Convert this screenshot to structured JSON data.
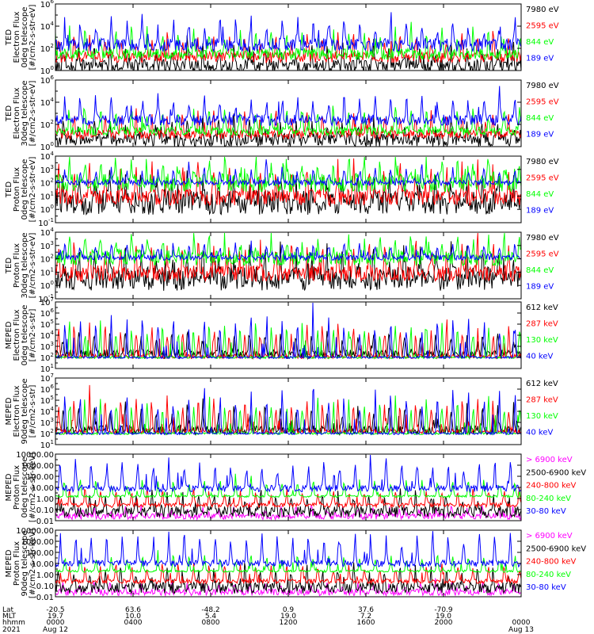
{
  "chart_data": [
    {
      "type": "line",
      "ylabel": [
        "TED",
        "Electron Flux",
        "0deg telescope",
        "[#/cm2-s-str-eV]"
      ],
      "yscale": "log",
      "ylim_exp": [
        0,
        6
      ],
      "tick_labels": [
        "10^0",
        "10^2",
        "10^4",
        "10^6"
      ],
      "series": [
        {
          "name": "7980 eV",
          "color": "#000000",
          "base_exp": 0.4,
          "noise": 0.6,
          "peak": 1.6,
          "seed": 11
        },
        {
          "name": "2595 eV",
          "color": "#ff0000",
          "base_exp": 1.2,
          "noise": 0.5,
          "peak": 1.8,
          "seed": 12
        },
        {
          "name": "844 eV",
          "color": "#00ff00",
          "base_exp": 1.5,
          "noise": 0.5,
          "peak": 2.0,
          "seed": 13
        },
        {
          "name": "189 eV",
          "color": "#0000ff",
          "base_exp": 2.3,
          "noise": 0.6,
          "peak": 2.2,
          "seed": 14
        }
      ]
    },
    {
      "type": "line",
      "ylabel": [
        "TED",
        "Electron Flux",
        "30deg telescope",
        "[#/cm2-s-str-eV]"
      ],
      "yscale": "log",
      "ylim_exp": [
        0,
        6
      ],
      "tick_labels": [
        "10^0",
        "10^2",
        "10^4",
        "10^6"
      ],
      "series": [
        {
          "name": "7980 eV",
          "color": "#000000",
          "base_exp": 0.6,
          "noise": 0.6,
          "peak": 1.5,
          "seed": 21
        },
        {
          "name": "2595 eV",
          "color": "#ff0000",
          "base_exp": 1.1,
          "noise": 0.4,
          "peak": 1.8,
          "seed": 22
        },
        {
          "name": "844 eV",
          "color": "#00ff00",
          "base_exp": 1.4,
          "noise": 0.4,
          "peak": 2.0,
          "seed": 23
        },
        {
          "name": "189 eV",
          "color": "#0000ff",
          "base_exp": 2.4,
          "noise": 0.5,
          "peak": 2.0,
          "seed": 24
        }
      ]
    },
    {
      "type": "line",
      "ylabel": [
        "TED",
        "Proton Flux",
        "0deg telescope",
        "[#/cm2-s-str-eV]"
      ],
      "yscale": "log",
      "ylim_exp": [
        -1,
        4
      ],
      "tick_labels": [
        "10^-1",
        "10^0",
        "10^1",
        "10^2",
        "10^3",
        "10^4"
      ],
      "series": [
        {
          "name": "7980 eV",
          "color": "#000000",
          "base_exp": 0.5,
          "noise": 0.9,
          "peak": 2.0,
          "seed": 31
        },
        {
          "name": "2595 eV",
          "color": "#ff0000",
          "base_exp": 0.9,
          "noise": 0.6,
          "peak": 2.2,
          "seed": 32
        },
        {
          "name": "844 eV",
          "color": "#00ff00",
          "base_exp": 2.0,
          "noise": 0.7,
          "peak": 1.6,
          "seed": 33
        },
        {
          "name": "189 eV",
          "color": "#0000ff",
          "base_exp": 2.0,
          "noise": 0.2,
          "peak": 1.0,
          "seed": 34
        }
      ]
    },
    {
      "type": "line",
      "ylabel": [
        "TED",
        "Proton Flux",
        "30deg telescope",
        "[#/cm2-s-str-eV]"
      ],
      "yscale": "log",
      "ylim_exp": [
        -1,
        4
      ],
      "tick_labels": [
        "10^-1",
        "10^0",
        "10^1",
        "10^2",
        "10^3",
        "10^4"
      ],
      "series": [
        {
          "name": "7980 eV",
          "color": "#000000",
          "base_exp": 0.5,
          "noise": 0.9,
          "peak": 2.0,
          "seed": 41
        },
        {
          "name": "2595 eV",
          "color": "#ff0000",
          "base_exp": 0.9,
          "noise": 0.6,
          "peak": 2.2,
          "seed": 42
        },
        {
          "name": "844 eV",
          "color": "#00ff00",
          "base_exp": 2.1,
          "noise": 0.6,
          "peak": 1.4,
          "seed": 43
        },
        {
          "name": "189 eV",
          "color": "#0000ff",
          "base_exp": 2.1,
          "noise": 0.2,
          "peak": 1.0,
          "seed": 44
        }
      ]
    },
    {
      "type": "line",
      "ylabel": [
        "MEPED",
        "Electron Flux",
        "0deg telescope",
        "[#/cm2-s-str]"
      ],
      "yscale": "log",
      "ylim_exp": [
        1,
        7
      ],
      "tick_labels": [
        "10^1",
        "10^2",
        "10^3",
        "10^4",
        "10^5",
        "10^6",
        "10^7"
      ],
      "series": [
        {
          "name": "612 keV",
          "color": "#000000",
          "base_exp": 2.3,
          "noise": 0.4,
          "peak": 1.8,
          "seed": 51
        },
        {
          "name": "287 keV",
          "color": "#ff0000",
          "base_exp": 2.1,
          "noise": 0.2,
          "peak": 2.5,
          "seed": 52
        },
        {
          "name": "130 keV",
          "color": "#00ff00",
          "base_exp": 2.0,
          "noise": 0.1,
          "peak": 2.8,
          "seed": 53
        },
        {
          "name": "40 keV",
          "color": "#0000ff",
          "base_exp": 2.0,
          "noise": 0.1,
          "peak": 3.2,
          "seed": 54
        }
      ]
    },
    {
      "type": "line",
      "ylabel": [
        "MEPED",
        "Electron Flux",
        "90deg telescope",
        "[#/cm2-s-str]"
      ],
      "yscale": "log",
      "ylim_exp": [
        1,
        7
      ],
      "tick_labels": [
        "10^1",
        "10^2",
        "10^3",
        "10^4",
        "10^5",
        "10^6",
        "10^7"
      ],
      "series": [
        {
          "name": "612 keV",
          "color": "#000000",
          "base_exp": 2.3,
          "noise": 0.4,
          "peak": 2.0,
          "seed": 61
        },
        {
          "name": "287 keV",
          "color": "#ff0000",
          "base_exp": 2.2,
          "noise": 0.2,
          "peak": 2.6,
          "seed": 62
        },
        {
          "name": "130 keV",
          "color": "#00ff00",
          "base_exp": 2.0,
          "noise": 0.1,
          "peak": 2.9,
          "seed": 63
        },
        {
          "name": "40 keV",
          "color": "#0000ff",
          "base_exp": 2.0,
          "noise": 0.1,
          "peak": 3.4,
          "seed": 64
        }
      ]
    },
    {
      "type": "line",
      "ylabel": [
        "MEPED",
        "Proton Flux",
        "0deg telescope",
        "[#/cm2-s-str-keV]"
      ],
      "yscale": "log",
      "ylim_exp": [
        -2,
        4
      ],
      "tick_labels": [
        "0.01",
        "0.10",
        "1.00",
        "10.00",
        "100.00",
        "1000.00",
        "10000.00"
      ],
      "series": [
        {
          "name": "> 6900 keV",
          "color": "#ff00ff",
          "base_exp": -1.6,
          "noise": 0.3,
          "peak": 0.8,
          "seed": 71
        },
        {
          "name": "2500-6900 keV",
          "color": "#000000",
          "base_exp": -1.2,
          "noise": 0.5,
          "peak": 1.5,
          "seed": 72
        },
        {
          "name": "240-800 keV",
          "color": "#ff0000",
          "base_exp": -0.6,
          "noise": 0.2,
          "peak": 1.3,
          "seed": 73
        },
        {
          "name": "80-240 keV",
          "color": "#00ff00",
          "base_exp": 0.2,
          "noise": 0.1,
          "peak": 1.4,
          "seed": 74
        },
        {
          "name": "30-80 keV",
          "color": "#0000ff",
          "base_exp": 0.9,
          "noise": 0.3,
          "peak": 2.4,
          "seed": 75
        }
      ]
    },
    {
      "type": "line",
      "ylabel": [
        "MEPED",
        "Proton Flux",
        "90deg telescope",
        "[#/cm2-s-str-keV]"
      ],
      "yscale": "log",
      "ylim_exp": [
        -2,
        4
      ],
      "tick_labels": [
        "0.01",
        "0.10",
        "1.00",
        "10.00",
        "100.00",
        "1000.00",
        "10000.00"
      ],
      "series": [
        {
          "name": "> 6900 keV",
          "color": "#ff00ff",
          "base_exp": -1.6,
          "noise": 0.3,
          "peak": 0.8,
          "seed": 81
        },
        {
          "name": "2500-6900 keV",
          "color": "#000000",
          "base_exp": -1.2,
          "noise": 0.5,
          "peak": 1.6,
          "seed": 82
        },
        {
          "name": "240-800 keV",
          "color": "#ff0000",
          "base_exp": -0.6,
          "noise": 0.2,
          "peak": 1.4,
          "seed": 83
        },
        {
          "name": "80-240 keV",
          "color": "#00ff00",
          "base_exp": 0.3,
          "noise": 0.1,
          "peak": 1.4,
          "seed": 84
        },
        {
          "name": "30-80 keV",
          "color": "#0000ff",
          "base_exp": 1.0,
          "noise": 0.3,
          "peak": 2.4,
          "seed": 85
        }
      ]
    }
  ],
  "x_axis": {
    "row_labels": [
      "Lat",
      "MLT",
      "hhmm",
      "2021"
    ],
    "columns": [
      {
        "lat": "-20.5",
        "mlt": "19.7",
        "hhmm": "0000",
        "date": "Aug 12"
      },
      {
        "lat": "63.6",
        "mlt": "10.0",
        "hhmm": "0400",
        "date": ""
      },
      {
        "lat": "-48.2",
        "mlt": "5.4",
        "hhmm": "0800",
        "date": ""
      },
      {
        "lat": "0.9",
        "mlt": "19.0",
        "hhmm": "1200",
        "date": ""
      },
      {
        "lat": "37.6",
        "mlt": "7.2",
        "hhmm": "1600",
        "date": ""
      },
      {
        "lat": "-70.9",
        "mlt": "19.0",
        "hhmm": "2000",
        "date": ""
      },
      {
        "lat": "",
        "mlt": "",
        "hhmm": "0000",
        "date": "Aug 13"
      }
    ],
    "n_orbits": 15
  }
}
